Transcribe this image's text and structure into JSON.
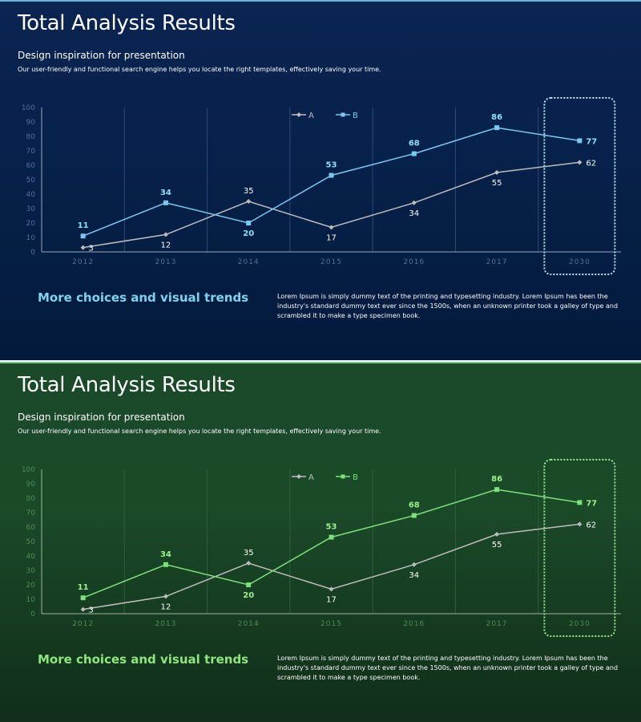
{
  "slides": [
    {
      "theme": "blue",
      "title": "Total Analysis Results",
      "subtitle": "Design inspiration for presentation",
      "description": "Our user-friendly and functional search engine helps you locate the right templates, effectively saving your time.",
      "heading": "More choices and visual trends",
      "body": "Lorem Ipsum is simply dummy text of the printing and typesetting industry. Lorem Ipsum has been the industry's standard dummy text ever since the 1500s, when an unknown printer took a galley of type and scrambled it to make a type specimen book.",
      "colors": {
        "seriesA": "#bdbdbd",
        "seriesB": "#7cc8ef",
        "labelB": "#8ee0f6",
        "tick": "#4f6f9a",
        "grid": "#2b4a78",
        "axis": "#9aa6bd",
        "highlight": "#b8e6f2"
      }
    },
    {
      "theme": "green",
      "title": "Total Analysis Results",
      "subtitle": "Design inspiration for presentation",
      "description": "Our user-friendly and functional search engine helps you locate the right templates, effectively saving your time.",
      "heading": "More choices and visual trends",
      "body": "Lorem Ipsum is simply dummy text of the printing and typesetting industry. Lorem Ipsum has been the industry's standard dummy text ever since the 1500s, when an unknown printer took a galley of type and scrambled it to make a type specimen book.",
      "colors": {
        "seriesA": "#bdbdbd",
        "seriesB": "#7ee07c",
        "labelB": "#9ef08c",
        "tick": "#4f8a57",
        "grid": "#2f5e39",
        "axis": "#a3b3a3",
        "highlight": "#9ee68e"
      }
    }
  ],
  "chart_data": [
    {
      "type": "line",
      "categories": [
        "2012",
        "2013",
        "2014",
        "2015",
        "2016",
        "2017",
        "2030"
      ],
      "series": [
        {
          "name": "A",
          "values": [
            3,
            12,
            35,
            17,
            34,
            55,
            62
          ]
        },
        {
          "name": "B",
          "values": [
            11,
            34,
            20,
            53,
            68,
            86,
            77
          ]
        }
      ],
      "ylim": [
        0,
        100
      ],
      "yticks": [
        "0",
        "10",
        "20",
        "30",
        "40",
        "50",
        "60",
        "70",
        "80",
        "90",
        "100"
      ],
      "legend": "top-center",
      "highlighted_category": "2030",
      "title": "",
      "xlabel": "",
      "ylabel": ""
    },
    {
      "type": "line",
      "categories": [
        "2012",
        "2013",
        "2014",
        "2015",
        "2016",
        "2017",
        "2030"
      ],
      "series": [
        {
          "name": "A",
          "values": [
            3,
            12,
            35,
            17,
            34,
            55,
            62
          ]
        },
        {
          "name": "B",
          "values": [
            11,
            34,
            20,
            53,
            68,
            86,
            77
          ]
        }
      ],
      "ylim": [
        0,
        100
      ],
      "yticks": [
        "0",
        "10",
        "20",
        "30",
        "40",
        "50",
        "60",
        "70",
        "80",
        "90",
        "100"
      ],
      "legend": "top-center",
      "highlighted_category": "2030",
      "title": "",
      "xlabel": "",
      "ylabel": ""
    }
  ]
}
